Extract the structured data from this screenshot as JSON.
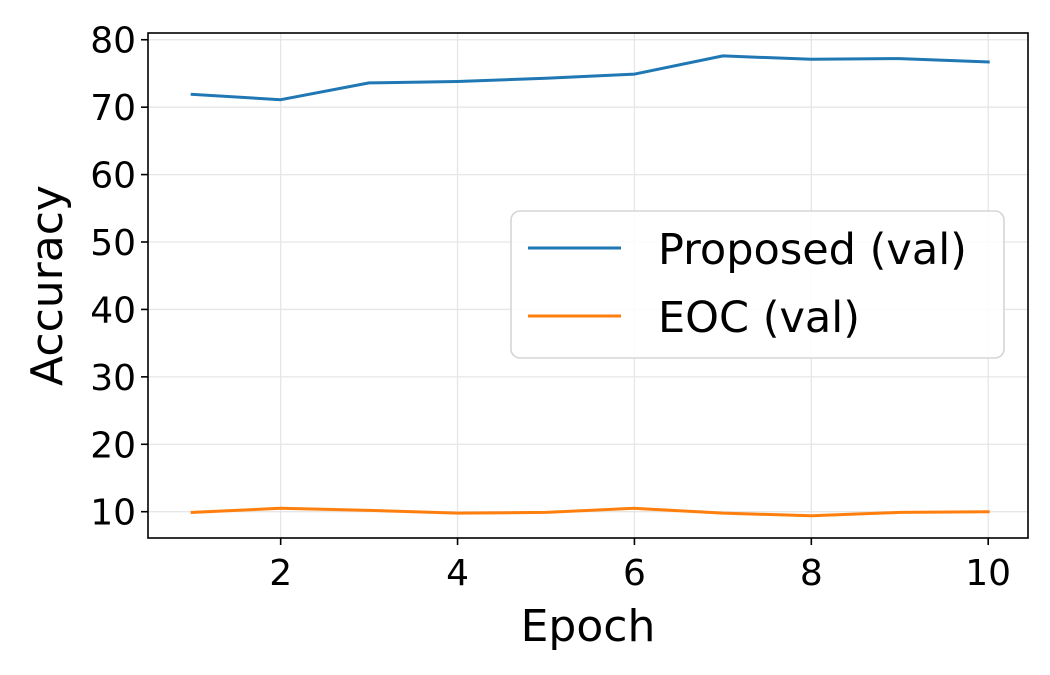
{
  "chart_data": {
    "type": "line",
    "xlabel": "Epoch",
    "ylabel": "Accuracy",
    "xlim": [
      0.5,
      10.45
    ],
    "ylim": [
      6.1,
      81.0
    ],
    "xticks": [
      2,
      4,
      6,
      8,
      10
    ],
    "yticks": [
      10,
      20,
      30,
      40,
      50,
      60,
      70,
      80
    ],
    "grid": true,
    "legend_position": "center-right",
    "x": [
      1,
      2,
      3,
      4,
      5,
      6,
      7,
      8,
      9,
      10
    ],
    "series": [
      {
        "name": "Proposed (val)",
        "color": "#1f77b4",
        "values": [
          71.9,
          71.1,
          73.6,
          73.8,
          74.3,
          74.9,
          77.6,
          77.1,
          77.2,
          76.7
        ]
      },
      {
        "name": "EOC (val)",
        "color": "#ff7f0e",
        "values": [
          9.9,
          10.5,
          10.2,
          9.8,
          9.9,
          10.5,
          9.8,
          9.4,
          9.9,
          10.0
        ]
      }
    ]
  }
}
